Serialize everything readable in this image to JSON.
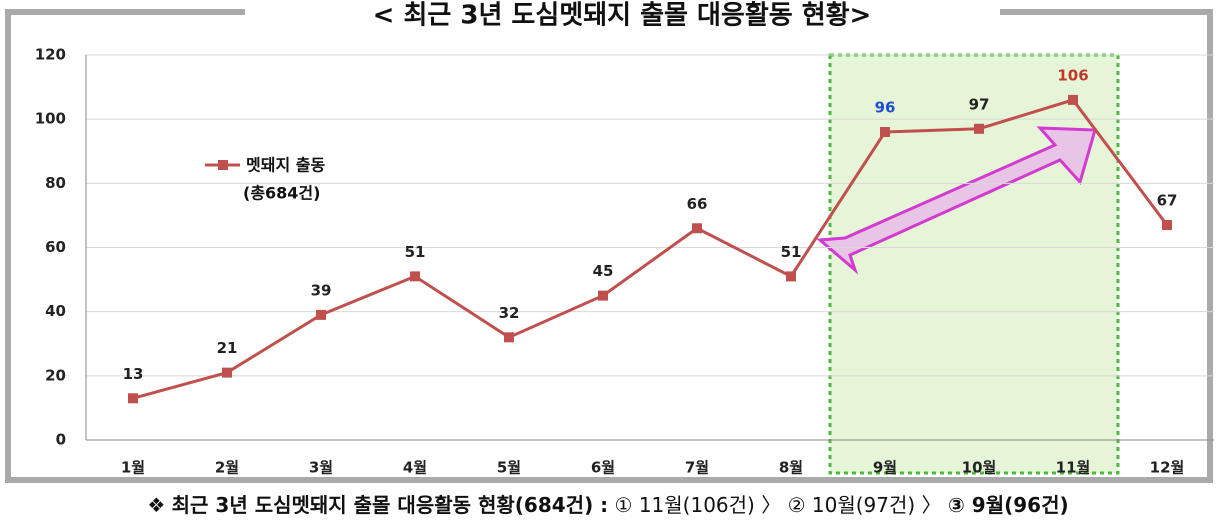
{
  "chart_data": {
    "type": "line",
    "title": "< 최근 3년 도심멧돼지 출몰 대응활동 현황>",
    "categories": [
      "1월",
      "2월",
      "3월",
      "4월",
      "5월",
      "6월",
      "7월",
      "8월",
      "9월",
      "10월",
      "11월",
      "12월"
    ],
    "series": [
      {
        "name": "멧돼지 출동",
        "note": "(총684건)",
        "color": "#c0504d",
        "values": [
          13,
          21,
          39,
          51,
          32,
          45,
          66,
          51,
          96,
          97,
          106,
          67
        ],
        "label_colors": [
          "#222",
          "#222",
          "#222",
          "#222",
          "#222",
          "#222",
          "#222",
          "#222",
          "#1f4fd0",
          "#222",
          "#c0392b",
          "#222"
        ]
      }
    ],
    "ylim": [
      0,
      120
    ],
    "yticks": [
      0,
      20,
      40,
      60,
      80,
      100,
      120
    ],
    "grid": true
  },
  "footer": {
    "symbol": "❖",
    "lead": "최근 3년 도심멧돼지 출몰 대응활동 현황(684건) :",
    "items": [
      "① 11월(106건)",
      "〉",
      "② 10월(97건)",
      "〉",
      "③ 9월(96건)"
    ]
  }
}
